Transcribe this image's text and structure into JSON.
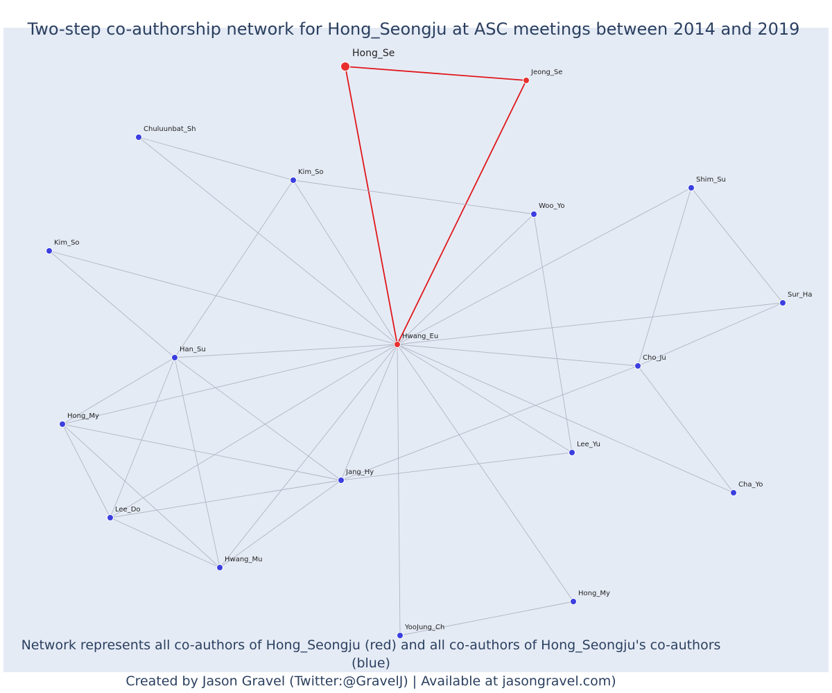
{
  "title": "Two-step co-authorship network for Hong_Seongju at ASC meetings between 2014 and 2019",
  "caption": {
    "line1": "Network represents all co-authors of Hong_Seongju (red) and all co-authors of Hong_Seongju's co-authors (blue)",
    "line2": "Created by Jason Gravel (Twitter:@GravelJ) | Available at jasongravel.com)"
  },
  "colors": {
    "ego": "#e8302f",
    "alter": "#3b3fe0",
    "ego_edge": "#e0161a",
    "edge": "#b0b4c4"
  },
  "nodes": [
    {
      "id": "hong_se",
      "label": "Hong_Se",
      "group": "ego",
      "focal": true
    },
    {
      "id": "jeong_se",
      "label": "Jeong_Se",
      "group": "ego"
    },
    {
      "id": "hwang_eu",
      "label": "Hwang_Eu",
      "group": "ego"
    },
    {
      "id": "chuluunbat_sh",
      "label": "Chuluunbat_Sh",
      "group": "alter"
    },
    {
      "id": "kim_so_1",
      "label": "Kim_So",
      "group": "alter"
    },
    {
      "id": "woo_yo",
      "label": "Woo_Yo",
      "group": "alter"
    },
    {
      "id": "shim_su",
      "label": "Shim_Su",
      "group": "alter"
    },
    {
      "id": "kim_so_2",
      "label": "Kim_So",
      "group": "alter"
    },
    {
      "id": "sur_ha",
      "label": "Sur_Ha",
      "group": "alter"
    },
    {
      "id": "han_su",
      "label": "Han_Su",
      "group": "alter"
    },
    {
      "id": "cho_ju",
      "label": "Cho_Ju",
      "group": "alter"
    },
    {
      "id": "hong_my_1",
      "label": "Hong_My",
      "group": "alter"
    },
    {
      "id": "lee_yu",
      "label": "Lee_Yu",
      "group": "alter"
    },
    {
      "id": "jang_hy",
      "label": "Jang_Hy",
      "group": "alter"
    },
    {
      "id": "cha_yo",
      "label": "Cha_Yo",
      "group": "alter"
    },
    {
      "id": "lee_do",
      "label": "Lee_Do",
      "group": "alter"
    },
    {
      "id": "hwang_mu",
      "label": "Hwang_Mu",
      "group": "alter"
    },
    {
      "id": "hong_my_2",
      "label": "Hong_My",
      "group": "alter"
    },
    {
      "id": "yoojung_ch",
      "label": "YooJung_Ch",
      "group": "alter"
    }
  ],
  "edges": [
    {
      "source": "hong_se",
      "target": "jeong_se",
      "type": "ego"
    },
    {
      "source": "hong_se",
      "target": "hwang_eu",
      "type": "ego"
    },
    {
      "source": "jeong_se",
      "target": "hwang_eu",
      "type": "ego"
    },
    {
      "source": "hwang_eu",
      "target": "chuluunbat_sh",
      "type": "alter"
    },
    {
      "source": "hwang_eu",
      "target": "kim_so_1",
      "type": "alter"
    },
    {
      "source": "hwang_eu",
      "target": "woo_yo",
      "type": "alter"
    },
    {
      "source": "hwang_eu",
      "target": "shim_su",
      "type": "alter"
    },
    {
      "source": "hwang_eu",
      "target": "kim_so_2",
      "type": "alter"
    },
    {
      "source": "hwang_eu",
      "target": "sur_ha",
      "type": "alter"
    },
    {
      "source": "hwang_eu",
      "target": "han_su",
      "type": "alter"
    },
    {
      "source": "hwang_eu",
      "target": "cho_ju",
      "type": "alter"
    },
    {
      "source": "hwang_eu",
      "target": "hong_my_1",
      "type": "alter"
    },
    {
      "source": "hwang_eu",
      "target": "lee_yu",
      "type": "alter"
    },
    {
      "source": "hwang_eu",
      "target": "jang_hy",
      "type": "alter"
    },
    {
      "source": "hwang_eu",
      "target": "cha_yo",
      "type": "alter"
    },
    {
      "source": "hwang_eu",
      "target": "lee_do",
      "type": "alter"
    },
    {
      "source": "hwang_eu",
      "target": "hwang_mu",
      "type": "alter"
    },
    {
      "source": "hwang_eu",
      "target": "hong_my_2",
      "type": "alter"
    },
    {
      "source": "hwang_eu",
      "target": "yoojung_ch",
      "type": "alter"
    },
    {
      "source": "chuluunbat_sh",
      "target": "kim_so_1",
      "type": "alter"
    },
    {
      "source": "kim_so_1",
      "target": "woo_yo",
      "type": "alter"
    },
    {
      "source": "kim_so_1",
      "target": "han_su",
      "type": "alter"
    },
    {
      "source": "woo_yo",
      "target": "lee_yu",
      "type": "alter"
    },
    {
      "source": "shim_su",
      "target": "sur_ha",
      "type": "alter"
    },
    {
      "source": "shim_su",
      "target": "cho_ju",
      "type": "alter"
    },
    {
      "source": "sur_ha",
      "target": "cho_ju",
      "type": "alter"
    },
    {
      "source": "cho_ju",
      "target": "cha_yo",
      "type": "alter"
    },
    {
      "source": "cho_ju",
      "target": "jang_hy",
      "type": "alter"
    },
    {
      "source": "kim_so_2",
      "target": "han_su",
      "type": "alter"
    },
    {
      "source": "han_su",
      "target": "hong_my_1",
      "type": "alter"
    },
    {
      "source": "han_su",
      "target": "jang_hy",
      "type": "alter"
    },
    {
      "source": "han_su",
      "target": "lee_do",
      "type": "alter"
    },
    {
      "source": "han_su",
      "target": "hwang_mu",
      "type": "alter"
    },
    {
      "source": "hong_my_1",
      "target": "jang_hy",
      "type": "alter"
    },
    {
      "source": "hong_my_1",
      "target": "lee_do",
      "type": "alter"
    },
    {
      "source": "hong_my_1",
      "target": "hwang_mu",
      "type": "alter"
    },
    {
      "source": "jang_hy",
      "target": "lee_yu",
      "type": "alter"
    },
    {
      "source": "jang_hy",
      "target": "lee_do",
      "type": "alter"
    },
    {
      "source": "jang_hy",
      "target": "hwang_mu",
      "type": "alter"
    },
    {
      "source": "lee_do",
      "target": "hwang_mu",
      "type": "alter"
    },
    {
      "source": "hong_my_2",
      "target": "yoojung_ch",
      "type": "alter"
    }
  ]
}
